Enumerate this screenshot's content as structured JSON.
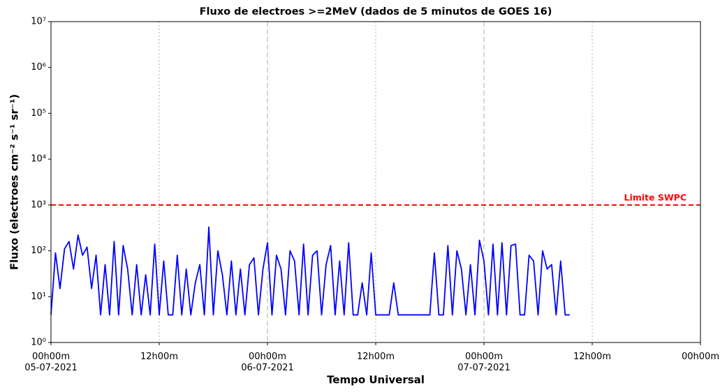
{
  "chart_data": {
    "type": "line",
    "title": "Fluxo de electroes  >=2MeV (dados de 5 minutos de GOES 16)",
    "xlabel": "Tempo Universal",
    "ylabel": "Fluxo (electroes cm⁻² s⁻¹ sr⁻¹)",
    "log_y": true,
    "grid": true,
    "xlim": [
      0,
      72
    ],
    "xticks": [
      {
        "value": 0,
        "label": "00h00m\n05-07-2021"
      },
      {
        "value": 12,
        "label": "12h00m"
      },
      {
        "value": 24,
        "label": "00h00m\n06-07-2021"
      },
      {
        "value": 36,
        "label": "12h00m"
      },
      {
        "value": 48,
        "label": "00h00m\n07-07-2021"
      },
      {
        "value": 60,
        "label": "12h00m"
      },
      {
        "value": 72,
        "label": "00h00m"
      }
    ],
    "ylim": [
      1,
      10000000
    ],
    "yticks": [
      {
        "value": 1,
        "label": "10⁰"
      },
      {
        "value": 10,
        "label": "10¹"
      },
      {
        "value": 100,
        "label": "10²"
      },
      {
        "value": 1000,
        "label": "10³"
      },
      {
        "value": 10000,
        "label": "10⁴"
      },
      {
        "value": 100000,
        "label": "10⁵"
      },
      {
        "value": 1000000,
        "label": "10⁶"
      },
      {
        "value": 10000000,
        "label": "10⁷"
      }
    ],
    "hlines": [
      {
        "value": 1000,
        "label": "Limite SWPC",
        "color": "#ff0000"
      }
    ],
    "x": [
      0,
      0.5,
      1,
      1.5,
      2,
      2.5,
      3,
      3.5,
      4,
      4.5,
      5,
      5.5,
      6,
      6.5,
      7,
      7.5,
      8,
      8.5,
      9,
      9.5,
      10,
      10.5,
      11,
      11.5,
      12,
      12.5,
      13,
      13.5,
      14,
      14.5,
      15,
      15.5,
      16,
      16.5,
      17,
      17.5,
      18,
      18.5,
      19,
      19.5,
      20,
      20.5,
      21,
      21.5,
      22,
      22.5,
      23,
      23.5,
      24,
      24.5,
      25,
      25.5,
      26,
      26.5,
      27,
      27.5,
      28,
      28.5,
      29,
      29.5,
      30,
      30.5,
      31,
      31.5,
      32,
      32.5,
      33,
      33.5,
      34,
      34.5,
      35,
      35.5,
      36,
      36.5,
      37,
      37.5,
      38,
      38.5,
      39,
      39.5,
      40,
      40.5,
      41,
      41.5,
      42,
      42.5,
      43,
      43.5,
      44,
      44.5,
      45,
      45.5,
      46,
      46.5,
      47,
      47.5,
      48,
      48.5,
      49,
      49.5,
      50,
      50.5,
      51,
      51.5,
      52,
      52.5,
      53,
      53.5,
      54,
      54.5,
      55,
      55.5,
      56,
      56.5,
      57,
      57.5
    ],
    "series": [
      {
        "name": "Fluxo",
        "color": "#0000ff",
        "values": [
          4,
          90,
          15,
          110,
          160,
          40,
          220,
          80,
          120,
          15,
          80,
          4,
          50,
          4,
          160,
          4,
          130,
          40,
          4,
          50,
          4,
          30,
          4,
          140,
          4,
          60,
          4,
          4,
          80,
          4,
          40,
          4,
          20,
          50,
          4,
          330,
          4,
          100,
          30,
          4,
          60,
          4,
          40,
          4,
          50,
          70,
          4,
          40,
          150,
          4,
          80,
          40,
          4,
          100,
          60,
          4,
          140,
          4,
          80,
          100,
          4,
          50,
          130,
          4,
          60,
          4,
          150,
          4,
          4,
          20,
          4,
          90,
          4,
          4,
          4,
          4,
          20,
          4,
          4,
          4,
          4,
          4,
          4,
          4,
          4,
          90,
          4,
          4,
          130,
          4,
          100,
          40,
          4,
          50,
          4,
          170,
          60,
          4,
          140,
          4,
          150,
          4,
          130,
          140,
          4,
          4,
          80,
          60,
          4,
          100,
          40,
          50,
          4,
          60,
          4,
          4
        ]
      }
    ]
  }
}
